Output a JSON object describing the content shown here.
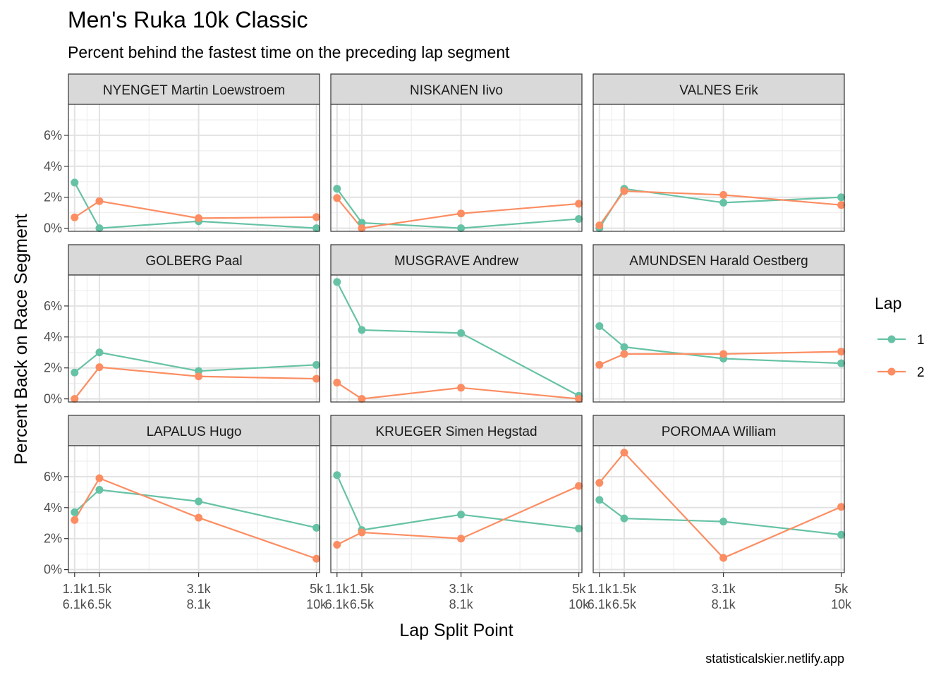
{
  "chart_data": {
    "type": "line",
    "title": "Men's Ruka 10k Classic",
    "subtitle": "Percent behind the fastest time on the preceding lap segment",
    "xlabel": "Lap Split Point",
    "ylabel": "Percent Back on Race Segment",
    "caption": "statisticalskier.netlify.app",
    "x_ticks": [
      {
        "line1": "1.1k",
        "line2": "6.1k"
      },
      {
        "line1": "1.5k",
        "line2": "6.5k"
      },
      {
        "line1": "3.1k",
        "line2": "8.1k"
      },
      {
        "line1": "5k",
        "line2": "10k"
      }
    ],
    "x_positions": [
      1.1,
      1.5,
      3.1,
      5.0
    ],
    "xlim": [
      1.0,
      5.05
    ],
    "ylim": [
      -0.2,
      8.0
    ],
    "y_ticks": [
      0,
      2,
      4,
      6
    ],
    "y_tick_labels": [
      "0%",
      "2%",
      "4%",
      "6%"
    ],
    "grid": true,
    "legend": {
      "title": "Lap",
      "position": "right",
      "entries": [
        {
          "label": "1",
          "color": "#66c2a5"
        },
        {
          "label": "2",
          "color": "#fc8d62"
        }
      ]
    },
    "facets": [
      {
        "name": "NYENGET Martin Loewstroem",
        "series": [
          {
            "lap": "1",
            "values": [
              2.95,
              0.0,
              0.45,
              0.0
            ]
          },
          {
            "lap": "2",
            "values": [
              0.7,
              1.75,
              0.65,
              0.72
            ]
          }
        ]
      },
      {
        "name": "NISKANEN Iivo",
        "series": [
          {
            "lap": "1",
            "values": [
              2.55,
              0.35,
              0.0,
              0.6
            ]
          },
          {
            "lap": "2",
            "values": [
              1.95,
              0.0,
              0.95,
              1.58
            ]
          }
        ]
      },
      {
        "name": "VALNES Erik",
        "series": [
          {
            "lap": "1",
            "values": [
              0.0,
              2.55,
              1.65,
              2.0
            ]
          },
          {
            "lap": "2",
            "values": [
              0.18,
              2.4,
              2.15,
              1.5
            ]
          }
        ]
      },
      {
        "name": "GOLBERG Paal",
        "series": [
          {
            "lap": "1",
            "values": [
              1.7,
              3.0,
              1.8,
              2.2
            ]
          },
          {
            "lap": "2",
            "values": [
              0.0,
              2.05,
              1.45,
              1.3
            ]
          }
        ]
      },
      {
        "name": "MUSGRAVE Andrew",
        "series": [
          {
            "lap": "1",
            "values": [
              7.55,
              4.45,
              4.25,
              0.2
            ]
          },
          {
            "lap": "2",
            "values": [
              1.05,
              0.0,
              0.72,
              0.0
            ]
          }
        ]
      },
      {
        "name": "AMUNDSEN Harald Oestberg",
        "series": [
          {
            "lap": "1",
            "values": [
              4.7,
              3.35,
              2.6,
              2.3
            ]
          },
          {
            "lap": "2",
            "values": [
              2.2,
              2.9,
              2.9,
              3.05
            ]
          }
        ]
      },
      {
        "name": "LAPALUS Hugo",
        "series": [
          {
            "lap": "1",
            "values": [
              3.7,
              5.15,
              4.4,
              2.7
            ]
          },
          {
            "lap": "2",
            "values": [
              3.2,
              5.9,
              3.35,
              0.7
            ]
          }
        ]
      },
      {
        "name": "KRUEGER Simen Hegstad",
        "series": [
          {
            "lap": "1",
            "values": [
              6.1,
              2.55,
              3.55,
              2.65
            ]
          },
          {
            "lap": "2",
            "values": [
              1.6,
              2.4,
              2.0,
              5.4
            ]
          }
        ]
      },
      {
        "name": "POROMAA William",
        "series": [
          {
            "lap": "1",
            "values": [
              4.5,
              3.3,
              3.1,
              2.25
            ]
          },
          {
            "lap": "2",
            "values": [
              5.6,
              7.55,
              0.75,
              4.05
            ]
          }
        ]
      }
    ]
  }
}
